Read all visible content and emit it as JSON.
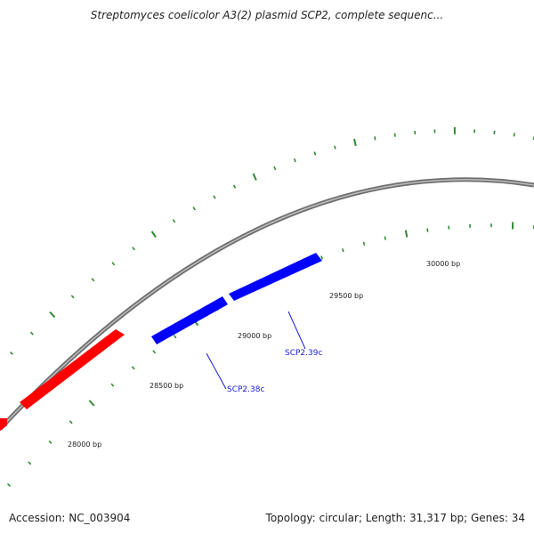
{
  "title": "Streptomyces coelicolor A3(2) plasmid SCP2, complete sequenc...",
  "footer": {
    "accession": "Accession: NC_003904",
    "summary": "Topology: circular; Length: 31,317 bp; Genes: 34"
  },
  "colors": {
    "backbone": "#808080",
    "forward_gene": "#ff0000",
    "reverse_gene": "#0000ff",
    "tick": "#2e8b2e",
    "gene_label": "#1a1ad6"
  },
  "tick_labels": [
    {
      "bp": 28000,
      "text": "28000 bp"
    },
    {
      "bp": 28500,
      "text": "28500 bp"
    },
    {
      "bp": 29000,
      "text": "29000 bp"
    },
    {
      "bp": 29500,
      "text": "29500 bp"
    },
    {
      "bp": 30000,
      "text": "30000 bp"
    }
  ],
  "genes": [
    {
      "strand": "forward",
      "label": ""
    },
    {
      "strand": "forward",
      "label": ""
    },
    {
      "strand": "reverse",
      "label": "SCP2.38c"
    },
    {
      "strand": "reverse",
      "label": "SCP2.39c"
    }
  ]
}
